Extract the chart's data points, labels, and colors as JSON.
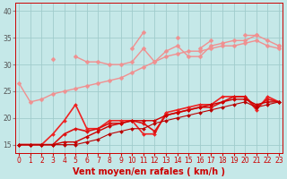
{
  "background_color": "#c5e8e8",
  "grid_color": "#a0cccc",
  "x_hours": [
    0,
    1,
    2,
    3,
    4,
    5,
    6,
    7,
    8,
    9,
    10,
    11,
    12,
    13,
    14,
    15,
    16,
    17,
    18,
    19,
    20,
    21,
    22,
    23
  ],
  "xlabel": "Vent moyen/en rafales ( km/h )",
  "xlabel_color": "#cc0000",
  "yticks": [
    15,
    20,
    25,
    30,
    35,
    40
  ],
  "ylim": [
    13.5,
    41.5
  ],
  "xlim": [
    -0.3,
    23.3
  ],
  "lines_salmon": [
    {
      "values": [
        26.5,
        23.0,
        23.5,
        24.5,
        25.0,
        25.5,
        26.0,
        26.5,
        27.0,
        27.5,
        28.5,
        29.5,
        30.5,
        31.5,
        32.0,
        32.5,
        32.5,
        33.0,
        33.5,
        33.5,
        34.0,
        34.5,
        33.5,
        33.0
      ],
      "color": "#f09090",
      "lw": 1.0
    },
    {
      "values": [
        null,
        null,
        null,
        31.0,
        null,
        31.5,
        30.5,
        30.5,
        30.0,
        30.0,
        30.5,
        33.0,
        30.5,
        32.5,
        33.5,
        31.5,
        31.5,
        33.5,
        34.0,
        34.5,
        34.5,
        35.5,
        34.5,
        33.5
      ],
      "color": "#f09090",
      "lw": 1.0
    },
    {
      "values": [
        null,
        null,
        null,
        null,
        null,
        null,
        null,
        null,
        null,
        null,
        33.0,
        36.0,
        null,
        null,
        35.0,
        null,
        33.0,
        34.5,
        null,
        null,
        35.5,
        35.5,
        null,
        33.5
      ],
      "color": "#f09090",
      "lw": 1.0
    }
  ],
  "lines_red": [
    {
      "values": [
        15.0,
        15.0,
        15.0,
        17.0,
        19.5,
        22.5,
        18.0,
        18.0,
        19.5,
        19.5,
        19.5,
        17.0,
        17.0,
        21.0,
        21.5,
        22.0,
        22.5,
        22.5,
        24.0,
        24.0,
        24.0,
        21.5,
        24.0,
        23.0
      ],
      "color": "#ee2222",
      "lw": 1.2
    },
    {
      "values": [
        15.0,
        15.0,
        15.0,
        15.0,
        17.0,
        18.0,
        17.5,
        18.0,
        19.0,
        19.0,
        19.5,
        19.0,
        17.5,
        20.5,
        21.0,
        21.5,
        22.0,
        22.0,
        23.0,
        24.0,
        24.0,
        22.0,
        23.5,
        23.0
      ],
      "color": "#dd1111",
      "lw": 1.2
    },
    {
      "values": [
        15.0,
        15.0,
        15.0,
        15.0,
        15.5,
        15.5,
        16.5,
        17.5,
        18.5,
        19.0,
        19.5,
        19.5,
        19.5,
        20.5,
        21.0,
        21.5,
        22.0,
        22.5,
        23.0,
        23.5,
        23.5,
        22.5,
        23.0,
        23.0
      ],
      "color": "#cc0000",
      "lw": 1.0
    },
    {
      "values": [
        15.0,
        15.0,
        15.0,
        15.0,
        15.0,
        15.0,
        15.5,
        16.0,
        17.0,
        17.5,
        18.0,
        18.0,
        19.0,
        19.5,
        20.0,
        20.5,
        21.0,
        21.5,
        22.0,
        22.5,
        23.0,
        22.0,
        22.5,
        23.0
      ],
      "color": "#bb0000",
      "lw": 0.8
    }
  ],
  "tick_fontsize": 5.5,
  "xlabel_fontsize": 7,
  "spine_color": "#cc0000",
  "marker_size_salmon": 2.5,
  "marker_size_red": 2.0
}
